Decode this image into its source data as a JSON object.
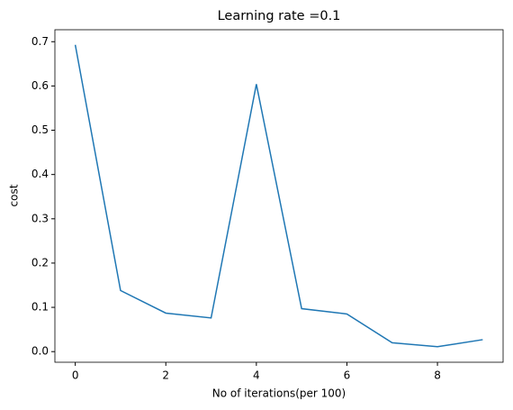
{
  "chart_data": {
    "type": "line",
    "title": "Learning rate =0.1",
    "x_label": "No of iterations(per 100)",
    "y_label": "cost",
    "x": [
      0,
      1,
      2,
      3,
      4,
      5,
      6,
      7,
      8,
      9
    ],
    "series": [
      {
        "color": "#1f77b4",
        "values": [
          0.693,
          0.138,
          0.087,
          0.076,
          0.604,
          0.097,
          0.085,
          0.02,
          0.011,
          0.027
        ]
      }
    ],
    "xlim": [
      -0.45,
      9.45
    ],
    "xticks": [
      0,
      2,
      4,
      6,
      8
    ],
    "ylim": [
      -0.024,
      0.727
    ],
    "yticks": [
      {
        "value": 0,
        "label": "0.0"
      },
      0.1,
      0.2,
      0.3,
      0.4,
      0.5,
      0.6,
      0.7
    ],
    "grid": false
  }
}
